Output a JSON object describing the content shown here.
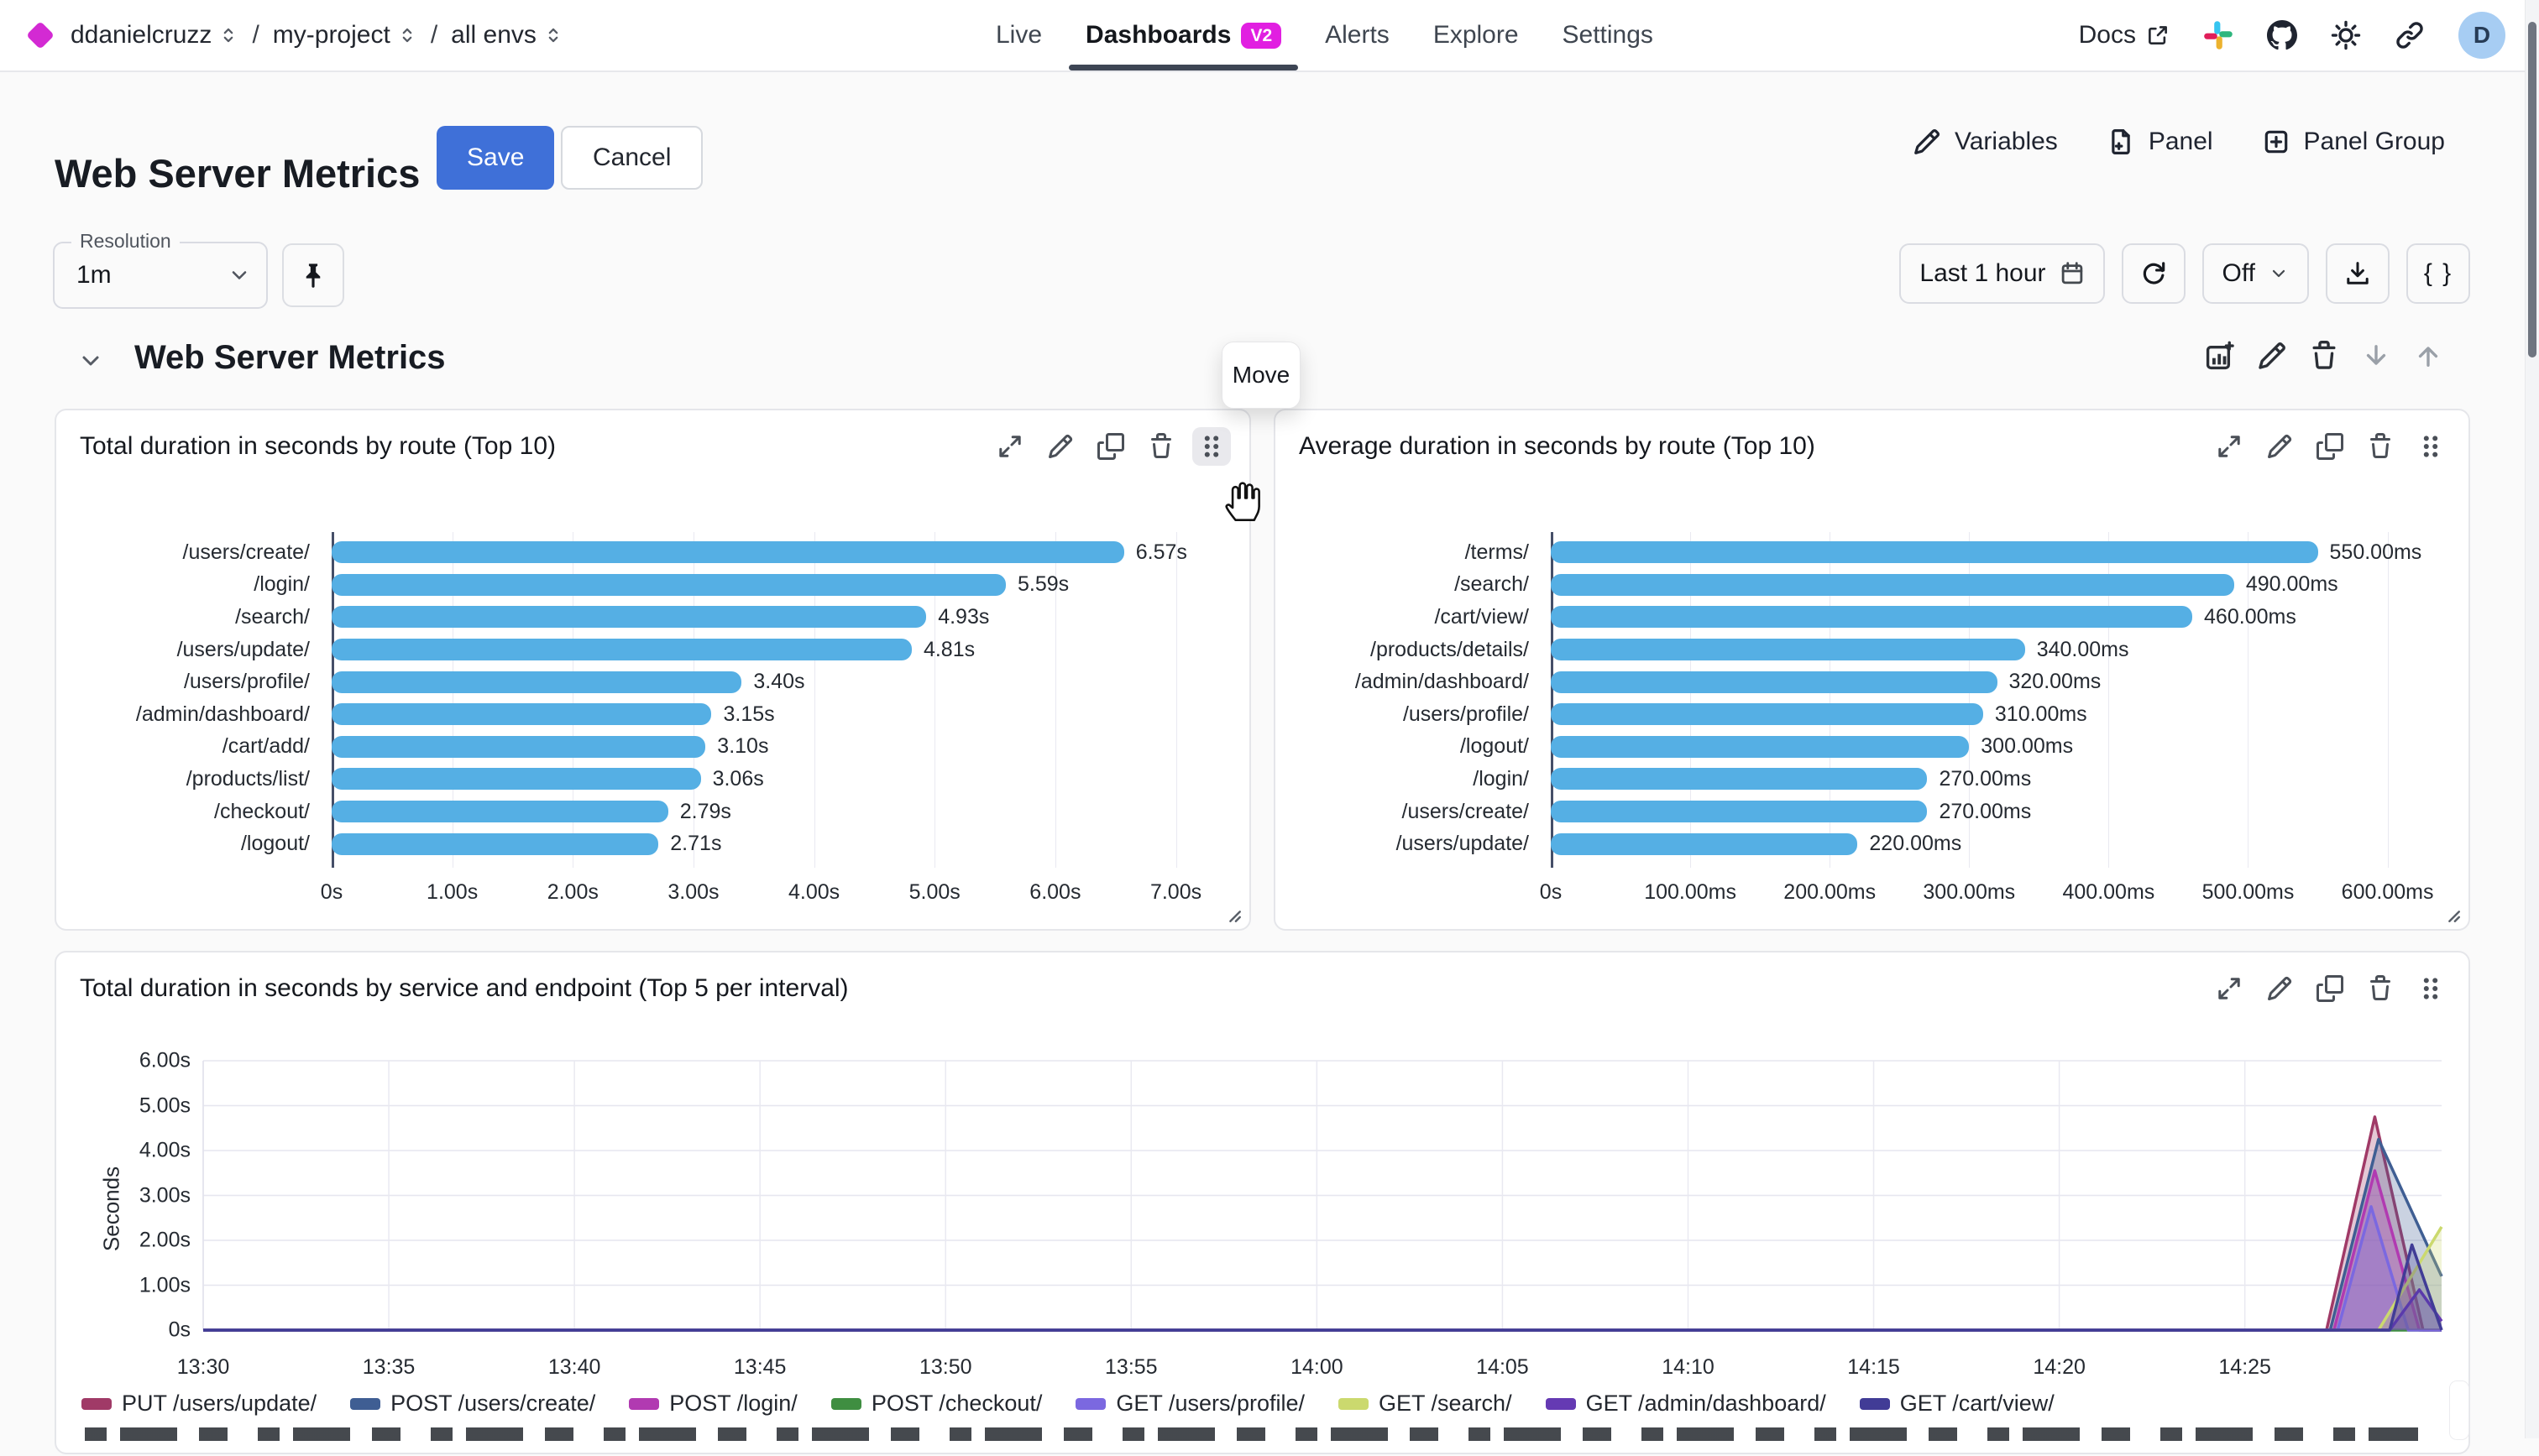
{
  "topbar": {
    "breadcrumb": [
      {
        "label": "ddanielcruzz"
      },
      {
        "label": "my-project"
      },
      {
        "label": "all envs"
      }
    ],
    "separator": "/",
    "tabs": [
      {
        "label": "Live"
      },
      {
        "label": "Dashboards",
        "badge": "V2"
      },
      {
        "label": "Alerts"
      },
      {
        "label": "Explore"
      },
      {
        "label": "Settings"
      }
    ],
    "docs_label": "Docs",
    "avatar_letter": "D"
  },
  "header": {
    "title": "Web Server Metrics",
    "save_label": "Save",
    "cancel_label": "Cancel",
    "actions": [
      {
        "label": "Variables"
      },
      {
        "label": "Panel"
      },
      {
        "label": "Panel Group"
      }
    ]
  },
  "controls": {
    "resolution_label": "Resolution",
    "resolution_value": "1m",
    "time_range": "Last 1 hour",
    "refresh_value": "Off",
    "braces": "{ }"
  },
  "section": {
    "title": "Web Server Metrics",
    "move_tooltip": "Move"
  },
  "colors": {
    "accent_blue": "#3f70d8",
    "bar_blue": "#55afe4",
    "brand_magenta": "#d32ad3",
    "badge_magenta": "#e11fe1",
    "active_tab_underline": "#3d4554"
  },
  "chart_data": [
    {
      "type": "bar",
      "orientation": "horizontal",
      "title": "Total duration in seconds by route (Top 10)",
      "categories": [
        "/users/create/",
        "/login/",
        "/search/",
        "/users/update/",
        "/users/profile/",
        "/admin/dashboard/",
        "/cart/add/",
        "/products/list/",
        "/checkout/",
        "/logout/"
      ],
      "values": [
        6.57,
        5.59,
        4.93,
        4.81,
        3.4,
        3.15,
        3.1,
        3.06,
        2.79,
        2.71
      ],
      "value_labels": [
        "6.57s",
        "5.59s",
        "4.93s",
        "4.81s",
        "3.40s",
        "3.15s",
        "3.10s",
        "3.06s",
        "2.79s",
        "2.71s"
      ],
      "x_ticks": [
        {
          "value": 0,
          "label": "0s"
        },
        {
          "value": 1,
          "label": "1.00s"
        },
        {
          "value": 2,
          "label": "2.00s"
        },
        {
          "value": 3,
          "label": "3.00s"
        },
        {
          "value": 4,
          "label": "4.00s"
        },
        {
          "value": 5,
          "label": "5.00s"
        },
        {
          "value": 6,
          "label": "6.00s"
        },
        {
          "value": 7,
          "label": "7.00s"
        }
      ],
      "plot_max": 7.4,
      "bar_color": "#55afe4"
    },
    {
      "type": "bar",
      "orientation": "horizontal",
      "title": "Average duration in seconds by route (Top 10)",
      "categories": [
        "/terms/",
        "/search/",
        "/cart/view/",
        "/products/details/",
        "/admin/dashboard/",
        "/users/profile/",
        "/logout/",
        "/login/",
        "/users/create/",
        "/users/update/"
      ],
      "values": [
        550,
        490,
        460,
        340,
        320,
        310,
        300,
        270,
        270,
        220
      ],
      "value_labels": [
        "550.00ms",
        "490.00ms",
        "460.00ms",
        "340.00ms",
        "320.00ms",
        "310.00ms",
        "300.00ms",
        "270.00ms",
        "270.00ms",
        "220.00ms"
      ],
      "x_ticks": [
        {
          "value": 0,
          "label": "0s"
        },
        {
          "value": 100,
          "label": "100.00ms"
        },
        {
          "value": 200,
          "label": "200.00ms"
        },
        {
          "value": 300,
          "label": "300.00ms"
        },
        {
          "value": 400,
          "label": "400.00ms"
        },
        {
          "value": 500,
          "label": "500.00ms"
        },
        {
          "value": 600,
          "label": "600.00ms"
        }
      ],
      "plot_max": 640,
      "bar_color": "#55afe4"
    },
    {
      "type": "area",
      "title": "Total duration in seconds by service and endpoint (Top 5 per interval)",
      "ylabel": "Seconds",
      "y_domain": [
        0,
        6
      ],
      "x_domain": [
        0,
        60.3
      ],
      "y_ticks": [
        {
          "v": 0,
          "label": "0s"
        },
        {
          "v": 1,
          "label": "1.00s"
        },
        {
          "v": 2,
          "label": "2.00s"
        },
        {
          "v": 3,
          "label": "3.00s"
        },
        {
          "v": 4,
          "label": "4.00s"
        },
        {
          "v": 5,
          "label": "5.00s"
        },
        {
          "v": 6,
          "label": "6.00s"
        }
      ],
      "x_ticks": [
        {
          "t": 0,
          "label": "13:30"
        },
        {
          "t": 5,
          "label": "13:35"
        },
        {
          "t": 10,
          "label": "13:40"
        },
        {
          "t": 15,
          "label": "13:45"
        },
        {
          "t": 20,
          "label": "13:50"
        },
        {
          "t": 25,
          "label": "13:55"
        },
        {
          "t": 30,
          "label": "14:00"
        },
        {
          "t": 35,
          "label": "14:05"
        },
        {
          "t": 40,
          "label": "14:10"
        },
        {
          "t": 45,
          "label": "14:15"
        },
        {
          "t": 50,
          "label": "14:20"
        },
        {
          "t": 55,
          "label": "14:25"
        }
      ],
      "series": [
        {
          "name": "PUT /users/update/",
          "color": "#a03a67",
          "points": [
            [
              0,
              0
            ],
            [
              57.2,
              0
            ],
            [
              58.5,
              4.75
            ],
            [
              59.8,
              0
            ],
            [
              60.3,
              0
            ]
          ]
        },
        {
          "name": "POST /users/create/",
          "color": "#3f5e93",
          "points": [
            [
              0,
              0
            ],
            [
              57.3,
              0
            ],
            [
              58.6,
              4.25
            ],
            [
              60.3,
              1.2
            ]
          ]
        },
        {
          "name": "POST /login/",
          "color": "#b13ab1",
          "points": [
            [
              0,
              0
            ],
            [
              57.4,
              0
            ],
            [
              58.5,
              3.55
            ],
            [
              59.7,
              0
            ],
            [
              60.3,
              0
            ]
          ]
        },
        {
          "name": "POST /checkout/",
          "color": "#3f8e41",
          "points": [
            [
              0,
              0
            ],
            [
              60.3,
              0
            ]
          ]
        },
        {
          "name": "GET /users/profile/",
          "color": "#7b68e0",
          "points": [
            [
              0,
              0
            ],
            [
              57.5,
              0
            ],
            [
              58.4,
              2.75
            ],
            [
              59.4,
              0
            ],
            [
              60.3,
              0
            ]
          ]
        },
        {
          "name": "GET /search/",
          "color": "#cbd96e",
          "points": [
            [
              0,
              0
            ],
            [
              58.6,
              0
            ],
            [
              60.3,
              2.3
            ]
          ]
        },
        {
          "name": "GET /admin/dashboard/",
          "color": "#653ab3",
          "points": [
            [
              0,
              0
            ],
            [
              58.9,
              0
            ],
            [
              59.7,
              0.9
            ],
            [
              60.3,
              0.2
            ]
          ]
        },
        {
          "name": "GET /cart/view/",
          "color": "#413c96",
          "points": [
            [
              0,
              0
            ],
            [
              58.9,
              0
            ],
            [
              59.5,
              1.9
            ],
            [
              60.3,
              0
            ]
          ]
        }
      ]
    }
  ]
}
